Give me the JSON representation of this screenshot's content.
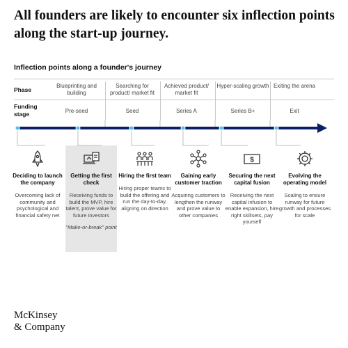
{
  "title": "All founders are likely to encounter six inflection points along the start-up journey.",
  "subtitle": "Inflection points along a founder's journey",
  "row_labels": {
    "phase": "Phase",
    "funding": "Funding stage"
  },
  "stages": [
    {
      "phase": "Blueprinting and building",
      "funding": "Pre-seed",
      "icon": "rocket-icon",
      "title": "Deciding to launch the company",
      "desc": "Overcoming lack of community and psychological and financial safety net"
    },
    {
      "phase": "",
      "funding": "",
      "icon": "laptop-document-icon",
      "title": "Getting the first check",
      "desc": "Receiving funds to build the MVP, hire talent, prove value for future investors",
      "note": "\"Make-or-break\" point",
      "highlight": true
    },
    {
      "phase": "Searching for product/ market fit",
      "funding": "Seed",
      "icon": "team-icon",
      "title": "Hiring the first team",
      "desc": "Hiring proper teams to build the offering and run the day-to-day, aligning on direction"
    },
    {
      "phase": "Achieved product/ market fit",
      "funding": "Series A",
      "icon": "customers-network-icon",
      "title": "Gaining early customer traction",
      "desc": "Acquiring customers to lengthen the runway and prove value to other companies"
    },
    {
      "phase": "Hyper-scaling growth",
      "funding": "Series B+",
      "icon": "dollar-bill-icon",
      "title": "Securing the next capital fusion",
      "desc": "Receiving the next capital infusion to enable expansion, hire right skillsets, pay yourself"
    },
    {
      "phase": "Exiting the arena",
      "funding": "Exit",
      "icon": "gear-icon",
      "title": "Evolving the operating model",
      "desc": "Scaling to ensure runway for future growth and processes for scale"
    }
  ],
  "colors": {
    "timeline": "#0b1f66",
    "dot": "#4fc3e6",
    "icon": "#333333",
    "highlight": "#e6e6e6"
  },
  "logo": {
    "line1": "McKinsey",
    "line2": "& Company"
  }
}
